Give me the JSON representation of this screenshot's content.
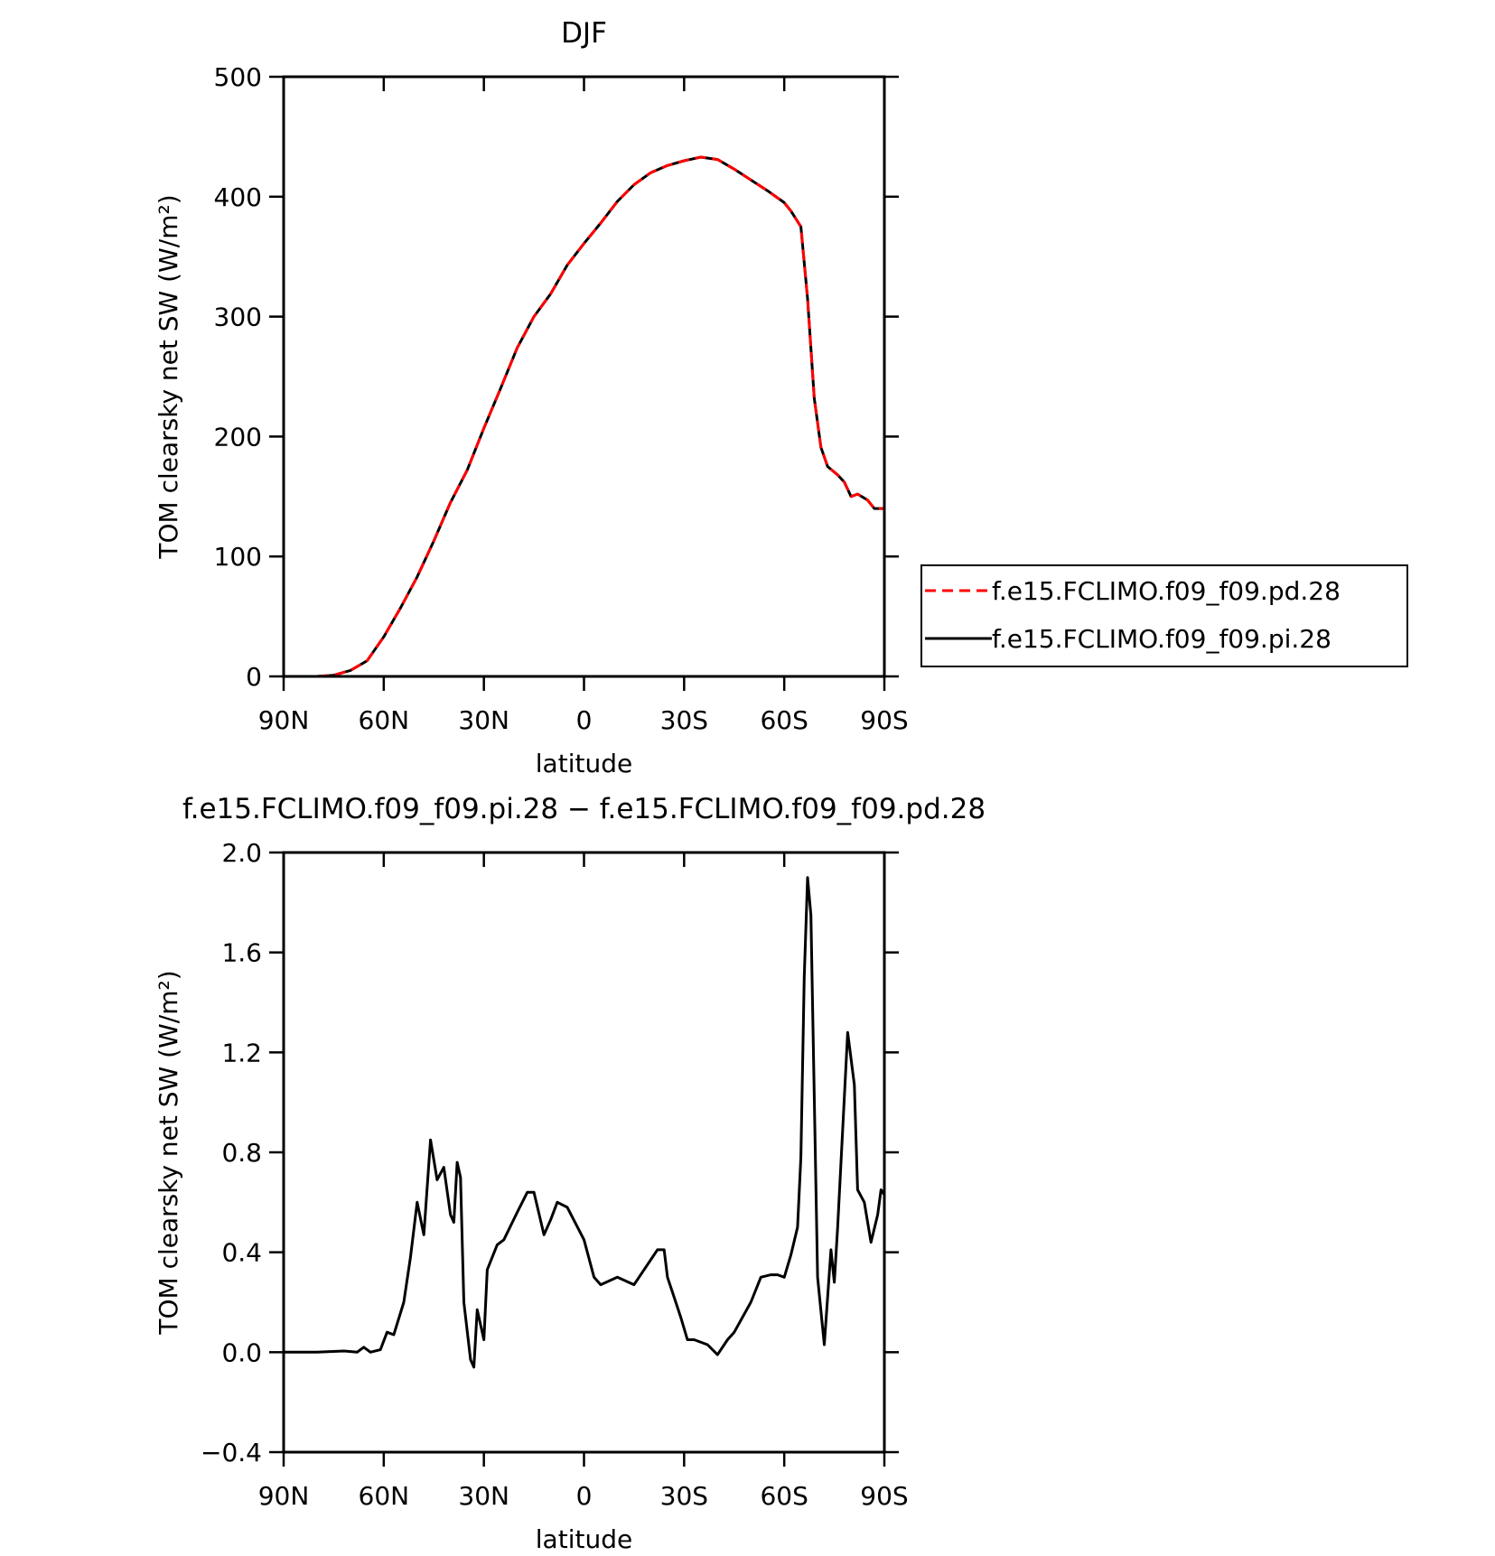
{
  "chart_data": [
    {
      "type": "line",
      "title": "DJF",
      "xlabel": "latitude",
      "ylabel": "TOM clearsky net SW (W/m²)",
      "x": [
        90,
        80,
        75,
        70,
        65,
        60,
        55,
        50,
        45,
        40,
        35,
        30,
        25,
        20,
        15,
        10,
        5,
        0,
        -5,
        -10,
        -15,
        -20,
        -25,
        -30,
        -35,
        -40,
        -45,
        -50,
        -55,
        -60,
        -62,
        -65,
        -67,
        -69,
        -71,
        -73,
        -76,
        -78,
        -80,
        -82,
        -85,
        -87,
        -89,
        -90
      ],
      "series": [
        {
          "name": "f.e15.FCLIMO.f09_f09.pd.28",
          "color": "#ff0000",
          "linestyle": "dashed",
          "values": [
            0,
            0,
            1,
            5,
            13,
            33,
            57,
            83,
            113,
            145,
            172,
            207,
            240,
            274,
            300,
            319,
            343,
            361,
            378,
            396,
            410,
            420,
            426,
            430,
            433,
            431,
            423,
            414,
            405,
            395,
            388,
            375,
            315,
            232,
            191,
            175,
            168,
            162,
            150,
            152,
            147,
            140,
            140,
            140
          ]
        },
        {
          "name": "f.e15.FCLIMO.f09_f09.pi.28",
          "color": "#000000",
          "linestyle": "solid",
          "values": [
            0,
            0,
            1,
            5,
            13,
            33,
            57,
            83,
            113,
            145,
            172,
            207,
            240,
            274,
            300,
            319,
            343,
            361,
            378,
            396,
            410,
            420,
            426,
            430,
            433,
            431,
            423,
            414,
            405,
            395,
            388,
            375,
            315,
            232,
            191,
            175,
            168,
            162,
            150,
            152,
            147,
            140,
            140,
            140
          ]
        }
      ],
      "xlim": [
        90,
        -90
      ],
      "xticks": [
        {
          "value": 90,
          "label": "90N"
        },
        {
          "value": 60,
          "label": "60N"
        },
        {
          "value": 30,
          "label": "30N"
        },
        0,
        {
          "value": -30,
          "label": "30S"
        },
        {
          "value": -60,
          "label": "60S"
        },
        {
          "value": -90,
          "label": "90S"
        }
      ],
      "ylim": [
        0,
        500
      ],
      "yticks": [
        0,
        100,
        200,
        300,
        400,
        500
      ],
      "legend": "outside-right"
    },
    {
      "type": "line",
      "title": "f.e15.FCLIMO.f09_f09.pi.28 − f.e15.FCLIMO.f09_f09.pd.28",
      "xlabel": "latitude",
      "ylabel": "TOM clearsky net SW (W/m²)",
      "x": [
        90,
        80,
        72,
        68,
        66,
        64,
        61,
        59,
        57,
        54,
        52,
        50,
        48,
        46,
        44,
        42,
        40,
        39,
        38,
        37,
        36,
        34,
        33,
        32,
        30,
        29,
        26,
        24,
        20,
        17,
        15,
        12,
        10,
        8,
        5,
        0,
        -3,
        -5,
        -10,
        -15,
        -20,
        -22,
        -24,
        -25,
        -27,
        -29,
        -31,
        -33,
        -37,
        -40,
        -43,
        -45,
        -50,
        -53,
        -56,
        -58,
        -60,
        -62,
        -64,
        -65,
        -66,
        -67,
        -68,
        -70,
        -72,
        -74,
        -75,
        -76,
        -79,
        -81,
        -82,
        -84,
        -86,
        -88,
        -89,
        -90
      ],
      "series": [
        {
          "color": "#000000",
          "linestyle": "solid",
          "values": [
            0,
            0,
            0.005,
            0,
            0.02,
            0,
            0.01,
            0.08,
            0.07,
            0.2,
            0.38,
            0.6,
            0.47,
            0.85,
            0.69,
            0.74,
            0.55,
            0.52,
            0.76,
            0.7,
            0.2,
            -0.03,
            -0.06,
            0.17,
            0.05,
            0.33,
            0.43,
            0.45,
            0.56,
            0.64,
            0.64,
            0.47,
            0.53,
            0.6,
            0.58,
            0.45,
            0.3,
            0.27,
            0.3,
            0.27,
            0.37,
            0.41,
            0.41,
            0.3,
            0.22,
            0.14,
            0.05,
            0.05,
            0.03,
            -0.01,
            0.05,
            0.08,
            0.2,
            0.3,
            0.31,
            0.31,
            0.3,
            0.39,
            0.5,
            0.78,
            1.5,
            1.9,
            1.75,
            0.3,
            0.03,
            0.41,
            0.28,
            0.5,
            1.28,
            1.07,
            0.65,
            0.6,
            0.44,
            0.55,
            0.65,
            0.63
          ]
        }
      ],
      "xlim": [
        90,
        -90
      ],
      "xticks": [
        {
          "value": 90,
          "label": "90N"
        },
        {
          "value": 60,
          "label": "60N"
        },
        {
          "value": 30,
          "label": "30N"
        },
        0,
        {
          "value": -30,
          "label": "30S"
        },
        {
          "value": -60,
          "label": "60S"
        },
        {
          "value": -90,
          "label": "90S"
        }
      ],
      "ylim": [
        -0.4,
        2.0
      ],
      "yticks": [
        {
          "value": -0.4,
          "label": "−0.4"
        },
        {
          "value": 0,
          "label": "0.0"
        },
        0.4,
        0.8,
        1.2,
        1.6,
        {
          "value": 2.0,
          "label": "2.0"
        }
      ]
    }
  ]
}
